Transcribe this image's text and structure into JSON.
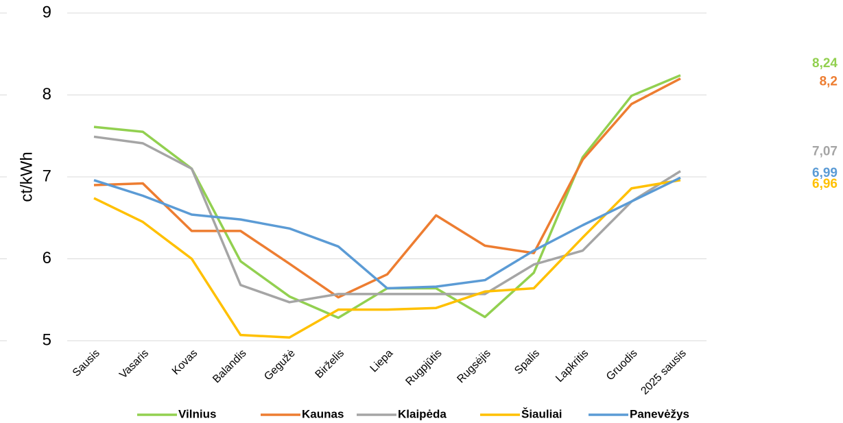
{
  "chart_data": {
    "type": "line",
    "y_label": "ct/kWh",
    "categories": [
      "Sausis",
      "Vasaris",
      "Kovas",
      "Balandis",
      "Gegužė",
      "Birželis",
      "Liepa",
      "Rugpjūtis",
      "Rugsėjis",
      "Spalis",
      "Lapkritis",
      "Gruodis",
      "2025 sausis"
    ],
    "series": [
      {
        "name": "Vilnius",
        "color": "#92d050",
        "values": [
          7.61,
          7.55,
          7.1,
          5.97,
          5.54,
          5.28,
          5.64,
          5.64,
          5.29,
          5.83,
          7.24,
          7.99,
          8.24
        ],
        "value_labels": [
          null,
          null,
          null,
          null,
          null,
          null,
          null,
          null,
          null,
          null,
          null,
          null,
          "8,24"
        ]
      },
      {
        "name": "Kaunas",
        "color": "#ed7d31",
        "values": [
          6.9,
          6.92,
          6.34,
          6.34,
          5.94,
          5.53,
          5.81,
          6.53,
          6.16,
          6.07,
          7.21,
          7.89,
          8.2
        ],
        "value_labels": [
          null,
          null,
          null,
          null,
          null,
          null,
          null,
          null,
          null,
          null,
          null,
          null,
          "8,2"
        ]
      },
      {
        "name": "Klaipėda",
        "color": "#a5a5a5",
        "values": [
          7.49,
          7.41,
          7.1,
          5.68,
          5.47,
          5.57,
          5.57,
          5.57,
          5.57,
          5.93,
          6.1,
          6.7,
          7.07
        ],
        "value_labels": [
          null,
          null,
          null,
          null,
          null,
          null,
          null,
          null,
          null,
          null,
          null,
          null,
          "7,07"
        ]
      },
      {
        "name": "Šiauliai",
        "color": "#ffc000",
        "values": [
          6.74,
          6.45,
          6.0,
          5.07,
          5.04,
          5.38,
          5.38,
          5.4,
          5.6,
          5.64,
          6.26,
          6.86,
          6.96
        ],
        "value_labels": [
          null,
          null,
          null,
          null,
          null,
          null,
          null,
          null,
          null,
          null,
          null,
          null,
          "6,96"
        ]
      },
      {
        "name": "Panevėžys",
        "color": "#5b9bd5",
        "values": [
          6.96,
          6.77,
          6.54,
          6.48,
          6.37,
          6.15,
          5.64,
          5.66,
          5.74,
          6.1,
          6.41,
          6.7,
          6.99
        ],
        "value_labels": [
          null,
          null,
          null,
          null,
          null,
          null,
          null,
          null,
          null,
          null,
          null,
          null,
          "6,99"
        ]
      }
    ],
    "ylim": [
      5,
      9
    ],
    "yticks": [
      5,
      6,
      7,
      8,
      9
    ],
    "grid": true,
    "legend": "bottom"
  }
}
